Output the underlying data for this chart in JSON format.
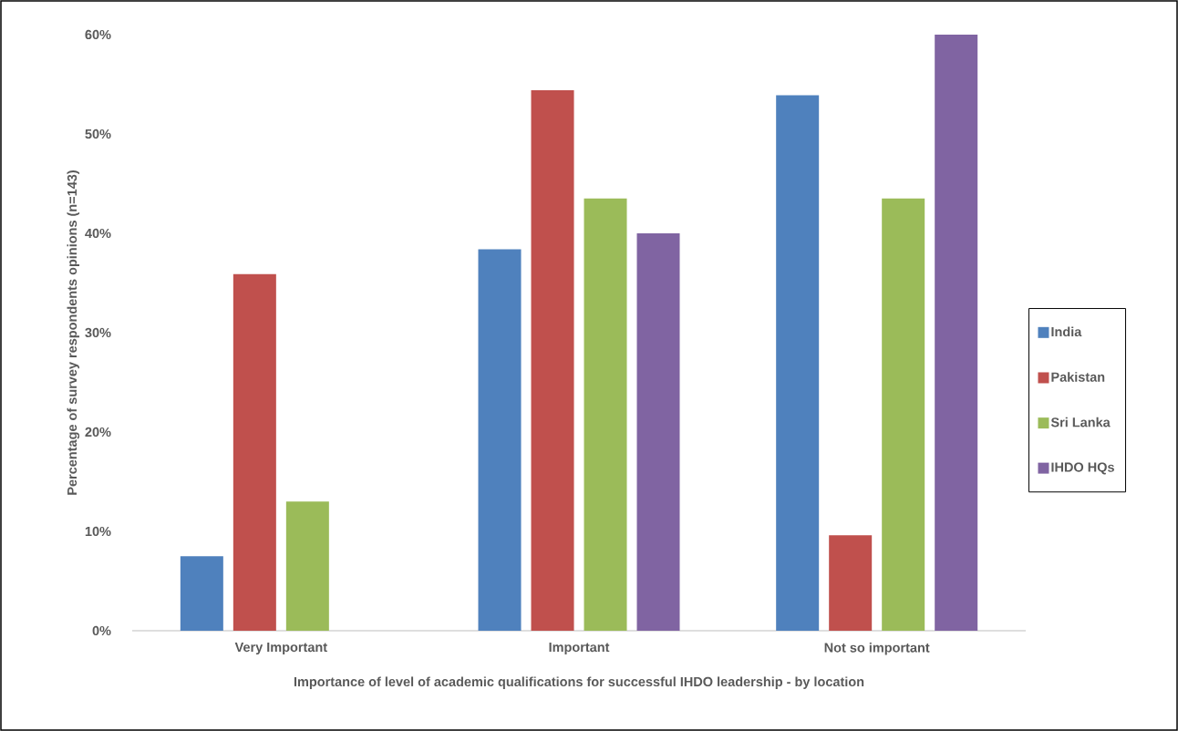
{
  "chart_data": {
    "type": "bar",
    "xlabel": "Importance of level of academic qualifications for successful IHDO leadership - by location",
    "ylabel": "Percentage of survey respondents opinions (n=143)",
    "categories": [
      "Very Important",
      "Important",
      "Not so important"
    ],
    "series": [
      {
        "name": "India",
        "color": "#4f81bd",
        "values": [
          7.5,
          38.4,
          53.9
        ]
      },
      {
        "name": "Pakistan",
        "color": "#c0504d",
        "values": [
          35.9,
          54.4,
          9.6
        ]
      },
      {
        "name": "Sri Lanka",
        "color": "#9bbb59",
        "values": [
          13.0,
          43.5,
          43.5
        ]
      },
      {
        "name": "IHDO HQs",
        "color": "#8064a2",
        "values": [
          0,
          40,
          60
        ]
      }
    ],
    "ylim": [
      0,
      60
    ],
    "yticks": [
      {
        "value": 0,
        "label": "0%"
      },
      {
        "value": 10,
        "label": "10%"
      },
      {
        "value": 20,
        "label": "20%"
      },
      {
        "value": 30,
        "label": "30%"
      },
      {
        "value": 40,
        "label": "40%"
      },
      {
        "value": 50,
        "label": "50%"
      },
      {
        "value": 60,
        "label": "60%"
      }
    ],
    "grid": false,
    "legend": "right"
  }
}
